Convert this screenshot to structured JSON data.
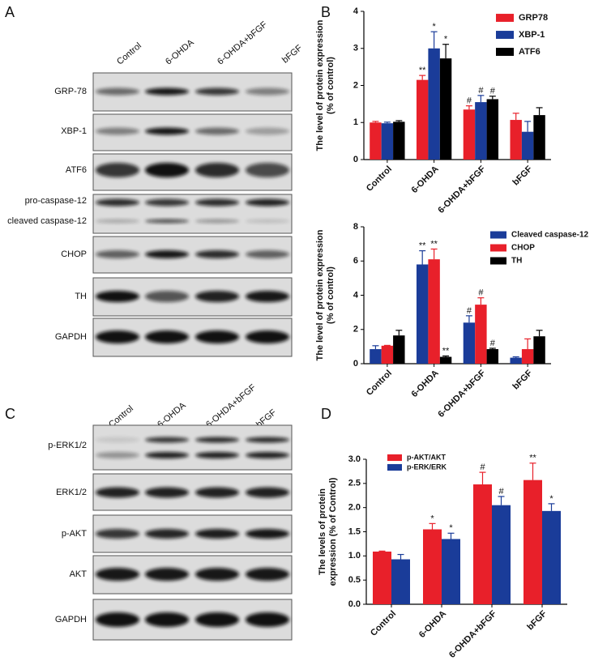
{
  "panel_labels": [
    "A",
    "B",
    "C",
    "D"
  ],
  "blot_a": {
    "lanes": [
      "Control",
      "6-OHDA",
      "6-OHDA+bFGF",
      "bFGF"
    ],
    "rows": [
      "GRP-78",
      "XBP-1",
      "ATF6",
      "pro-caspase-12",
      "cleaved caspase-12",
      "CHOP",
      "TH",
      "GAPDH"
    ]
  },
  "blot_c": {
    "lanes": [
      "Control",
      "6-OHDA",
      "6-OHDA+bFGF",
      "bFGF"
    ],
    "rows": [
      "p-ERK1/2",
      "ERK1/2",
      "p-AKT",
      "AKT",
      "GAPDH"
    ]
  },
  "chart_data": [
    {
      "type": "bar",
      "ylabel": [
        "The level of protein expression",
        "(% of control)"
      ],
      "categories": [
        "Control",
        "6-OHDA",
        "6-OHDA+bFGF",
        "bFGF"
      ],
      "series": [
        {
          "name": "GRP78",
          "color": "#e8202a",
          "values": [
            1.0,
            2.15,
            1.35,
            1.07
          ],
          "errors": [
            0.03,
            0.12,
            0.1,
            0.18
          ],
          "annotations": [
            null,
            "**",
            "#",
            null
          ]
        },
        {
          "name": "XBP-1",
          "color": "#1a3c99",
          "values": [
            0.98,
            3.0,
            1.55,
            0.75
          ],
          "errors": [
            0.03,
            0.45,
            0.18,
            0.28
          ],
          "annotations": [
            null,
            "*",
            "#",
            null
          ]
        },
        {
          "name": "ATF6",
          "color": "#000000",
          "values": [
            1.02,
            2.73,
            1.63,
            1.2
          ],
          "errors": [
            0.03,
            0.38,
            0.08,
            0.2
          ],
          "annotations": [
            null,
            "*",
            "#",
            null
          ]
        }
      ],
      "ylim": [
        0,
        4
      ],
      "yticks": [
        0,
        1,
        2,
        3,
        4
      ],
      "legend": "upper right"
    },
    {
      "type": "bar",
      "ylabel": [
        "The level of protein expression",
        "(% of control)"
      ],
      "categories": [
        "Control",
        "6-OHDA",
        "6-OHDA+bFGF",
        "bFGF"
      ],
      "series": [
        {
          "name": "Cleaved caspase-12",
          "color": "#1a3c99",
          "values": [
            0.85,
            5.8,
            2.4,
            0.35
          ],
          "errors": [
            0.2,
            0.8,
            0.4,
            0.05
          ],
          "annotations": [
            null,
            "**",
            "#",
            null
          ]
        },
        {
          "name": "CHOP",
          "color": "#e8202a",
          "values": [
            1.05,
            6.1,
            3.45,
            0.85
          ],
          "errors": [
            0.02,
            0.6,
            0.4,
            0.6
          ],
          "annotations": [
            null,
            "**",
            "#",
            null
          ]
        },
        {
          "name": "TH",
          "color": "#000000",
          "values": [
            1.65,
            0.4,
            0.85,
            1.6
          ],
          "errors": [
            0.3,
            0.05,
            0.05,
            0.35
          ],
          "annotations": [
            null,
            "**",
            "#",
            null
          ]
        }
      ],
      "ylim": [
        0,
        8
      ],
      "yticks": [
        0,
        2,
        4,
        6,
        8
      ],
      "legend": "upper right"
    },
    {
      "type": "bar",
      "ylabel": [
        "The levels of protein",
        "expression (% of Control)"
      ],
      "categories": [
        "Control",
        "6-OHDA",
        "6-OHDA+bFGF",
        "bFGF"
      ],
      "series": [
        {
          "name": "p-AKT/AKT",
          "color": "#e8202a",
          "values": [
            1.09,
            1.55,
            2.48,
            2.57
          ],
          "errors": [
            0.01,
            0.12,
            0.25,
            0.35
          ],
          "annotations": [
            null,
            "*",
            "#",
            "**"
          ]
        },
        {
          "name": "p-ERK/ERK",
          "color": "#1a3c99",
          "values": [
            0.93,
            1.35,
            2.05,
            1.93
          ],
          "errors": [
            0.1,
            0.12,
            0.18,
            0.15
          ],
          "annotations": [
            null,
            "*",
            "#",
            "*"
          ]
        }
      ],
      "ylim": [
        0,
        3
      ],
      "yticks": [
        {
          "value": 0,
          "label": "0.0"
        },
        {
          "value": 0.5,
          "label": "0.5"
        },
        {
          "value": 1,
          "label": "1.0"
        },
        {
          "value": 1.5,
          "label": "1.5"
        },
        {
          "value": 2,
          "label": "2.0"
        },
        {
          "value": 2.5,
          "label": "2.5"
        },
        {
          "value": 3,
          "label": "3.0"
        }
      ],
      "legend": "upper left"
    }
  ]
}
